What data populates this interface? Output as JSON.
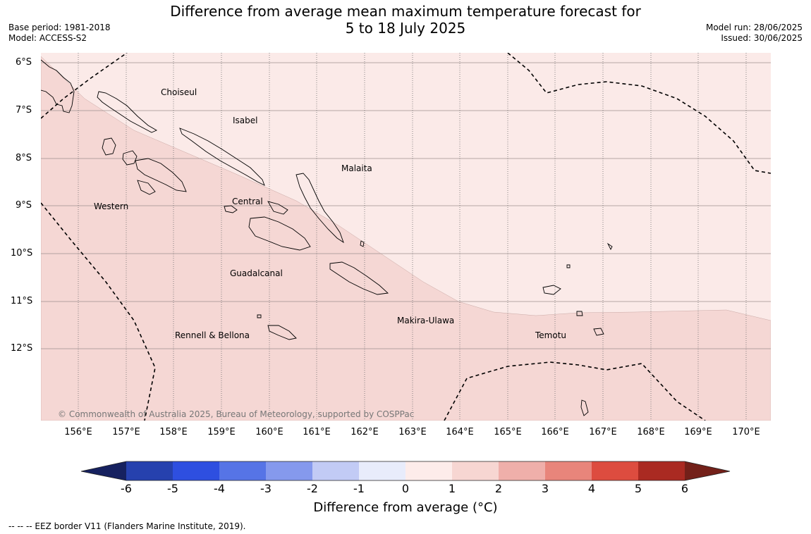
{
  "header": {
    "title_line1": "Difference from average mean maximum temperature forecast for",
    "title_line2": "5 to 18 July 2025",
    "base_period": "Base period: 1981-2018",
    "model": "Model: ACCESS-S2",
    "model_run": "Model run: 28/06/2025",
    "issued": "Issued: 30/06/2025"
  },
  "map": {
    "lat_labels": [
      "6°S",
      "7°S",
      "8°S",
      "9°S",
      "10°S",
      "11°S",
      "12°S"
    ],
    "lon_labels": [
      "156°E",
      "157°E",
      "158°E",
      "159°E",
      "160°E",
      "161°E",
      "162°E",
      "163°E",
      "164°E",
      "165°E",
      "166°E",
      "167°E",
      "168°E",
      "169°E",
      "170°E"
    ],
    "regions": {
      "choiseul": "Choiseul",
      "isabel": "Isabel",
      "malaita": "Malaita",
      "western": "Western",
      "central": "Central",
      "guadalcanal": "Guadalcanal",
      "makira": "Makira-Ulawa",
      "rennell": "Rennell & Bellona",
      "temotu": "Temotu"
    },
    "copyright": "© Commonwealth of Australia 2025, Bureau of Meteorology, supported by COSPPac",
    "fill_colors": {
      "band_0_1": "#fbeae8",
      "band_1_2": "#f5d7d4"
    }
  },
  "colorbar": {
    "ticks": [
      "-6",
      "-5",
      "-4",
      "-3",
      "-2",
      "-1",
      "0",
      "1",
      "2",
      "3",
      "4",
      "5",
      "6"
    ],
    "colors": [
      "#16215f",
      "#2641ae",
      "#2e4fe0",
      "#5674e6",
      "#8599ed",
      "#c2cbf5",
      "#e8ecfb",
      "#fdecea",
      "#f7d6d2",
      "#efafaa",
      "#e8857b",
      "#dd4c3f",
      "#aa2a22",
      "#732019"
    ],
    "label": "Difference from average (°C)"
  },
  "footer": {
    "eez_note": "--  --  -- EEZ border V11 (Flanders Marine Institute, 2019)."
  }
}
